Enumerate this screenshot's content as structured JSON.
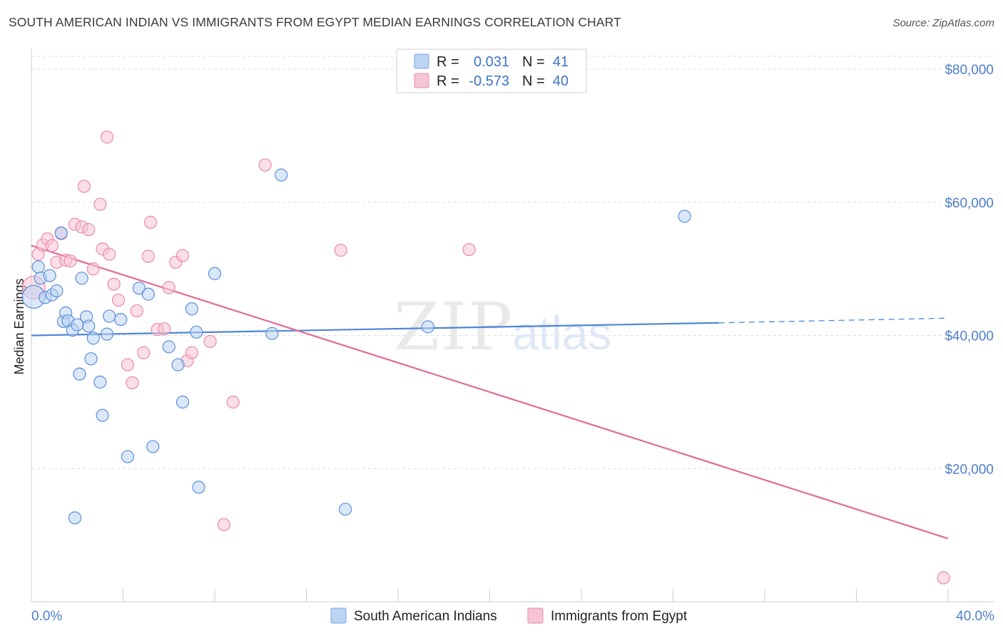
{
  "header": {
    "title": "SOUTH AMERICAN INDIAN VS IMMIGRANTS FROM EGYPT MEDIAN EARNINGS CORRELATION CHART",
    "source": "Source: ZipAtlas.com"
  },
  "watermark": {
    "zip": "ZIP",
    "atlas": "atlas"
  },
  "colors": {
    "blue": "#4f86d6",
    "blue_fill": "#bcd3f2",
    "pink": "#e06b96",
    "pink_fill": "#f6c4d5",
    "axis_label": "#4f7fc9",
    "grid": "#dddddd"
  },
  "legend": {
    "rows": [
      {
        "r_label": "R =",
        "r_value": "0.031",
        "n_label": "N =",
        "n_value": "41"
      },
      {
        "r_label": "R =",
        "r_value": "-0.573",
        "n_label": "N =",
        "n_value": "40"
      }
    ]
  },
  "chart_data": {
    "type": "scatter",
    "title": "SOUTH AMERICAN INDIAN VS IMMIGRANTS FROM EGYPT MEDIAN EARNINGS CORRELATION CHART",
    "xlabel": "",
    "ylabel": "Median Earnings",
    "xlim": [
      0,
      40
    ],
    "ylim": [
      0,
      82000
    ],
    "x_tick_labels": [
      "0.0%",
      "40.0%"
    ],
    "y_ticks": [
      {
        "value": 20000,
        "label": "$20,000"
      },
      {
        "value": 40000,
        "label": "$40,000"
      },
      {
        "value": 60000,
        "label": "$60,000"
      },
      {
        "value": 80000,
        "label": "$80,000"
      }
    ],
    "series": [
      {
        "name": "South American Indians",
        "color": "#4f86d6",
        "r": 0.031,
        "n": 41,
        "trend": {
          "x0": 0,
          "y0": 40000,
          "x1": 30,
          "y1": 41900,
          "dash_to_x": 40,
          "dash_to_y": 42600
        },
        "points": [
          {
            "x": 0.1,
            "y": 45800,
            "big": true
          },
          {
            "x": 0.3,
            "y": 50300
          },
          {
            "x": 0.4,
            "y": 48600
          },
          {
            "x": 0.6,
            "y": 45700
          },
          {
            "x": 0.8,
            "y": 49000
          },
          {
            "x": 0.9,
            "y": 46100
          },
          {
            "x": 1.1,
            "y": 46700
          },
          {
            "x": 1.3,
            "y": 55400
          },
          {
            "x": 1.4,
            "y": 42100
          },
          {
            "x": 1.5,
            "y": 43400
          },
          {
            "x": 1.6,
            "y": 42200
          },
          {
            "x": 1.8,
            "y": 40800
          },
          {
            "x": 2.1,
            "y": 34200
          },
          {
            "x": 2.2,
            "y": 48600
          },
          {
            "x": 2.4,
            "y": 42800
          },
          {
            "x": 2.5,
            "y": 41400
          },
          {
            "x": 2.6,
            "y": 36500
          },
          {
            "x": 2.7,
            "y": 39600
          },
          {
            "x": 3.0,
            "y": 33000
          },
          {
            "x": 3.1,
            "y": 28000
          },
          {
            "x": 3.3,
            "y": 40200
          },
          {
            "x": 3.4,
            "y": 42900
          },
          {
            "x": 3.9,
            "y": 42400
          },
          {
            "x": 4.2,
            "y": 21800
          },
          {
            "x": 4.7,
            "y": 47100
          },
          {
            "x": 5.1,
            "y": 46200
          },
          {
            "x": 5.3,
            "y": 23300
          },
          {
            "x": 6.0,
            "y": 38300
          },
          {
            "x": 6.4,
            "y": 35600
          },
          {
            "x": 6.6,
            "y": 30000
          },
          {
            "x": 7.0,
            "y": 44000
          },
          {
            "x": 7.2,
            "y": 40500
          },
          {
            "x": 7.3,
            "y": 17200
          },
          {
            "x": 8.0,
            "y": 49300
          },
          {
            "x": 10.5,
            "y": 40300
          },
          {
            "x": 10.9,
            "y": 64100
          },
          {
            "x": 13.7,
            "y": 13900
          },
          {
            "x": 17.3,
            "y": 41300
          },
          {
            "x": 28.5,
            "y": 57900
          },
          {
            "x": 1.9,
            "y": 12600
          },
          {
            "x": 2.0,
            "y": 41600
          }
        ]
      },
      {
        "name": "Immigrants from Egypt",
        "color": "#e06b96",
        "r": -0.573,
        "n": 40,
        "trend": {
          "x0": 0,
          "y0": 53500,
          "x1": 40,
          "y1": 9500
        },
        "points": [
          {
            "x": 0.1,
            "y": 47200,
            "big": true
          },
          {
            "x": 0.3,
            "y": 52200
          },
          {
            "x": 0.5,
            "y": 53600
          },
          {
            "x": 0.7,
            "y": 54500
          },
          {
            "x": 0.9,
            "y": 53500
          },
          {
            "x": 1.1,
            "y": 51000
          },
          {
            "x": 1.3,
            "y": 55300
          },
          {
            "x": 1.5,
            "y": 51300
          },
          {
            "x": 1.7,
            "y": 51200
          },
          {
            "x": 1.9,
            "y": 56700
          },
          {
            "x": 2.2,
            "y": 56300
          },
          {
            "x": 2.3,
            "y": 62400
          },
          {
            "x": 2.5,
            "y": 55900
          },
          {
            "x": 2.7,
            "y": 50000
          },
          {
            "x": 3.0,
            "y": 59700
          },
          {
            "x": 3.1,
            "y": 53000
          },
          {
            "x": 3.3,
            "y": 69800
          },
          {
            "x": 3.4,
            "y": 52200
          },
          {
            "x": 3.6,
            "y": 47700
          },
          {
            "x": 3.8,
            "y": 45300
          },
          {
            "x": 4.2,
            "y": 35600
          },
          {
            "x": 4.4,
            "y": 32900
          },
          {
            "x": 4.6,
            "y": 43700
          },
          {
            "x": 4.9,
            "y": 37400
          },
          {
            "x": 5.1,
            "y": 51900
          },
          {
            "x": 5.2,
            "y": 57000
          },
          {
            "x": 5.5,
            "y": 40900
          },
          {
            "x": 5.8,
            "y": 41000
          },
          {
            "x": 6.0,
            "y": 47200
          },
          {
            "x": 6.3,
            "y": 51000
          },
          {
            "x": 6.6,
            "y": 52000
          },
          {
            "x": 6.8,
            "y": 36200
          },
          {
            "x": 7.0,
            "y": 37400
          },
          {
            "x": 7.8,
            "y": 39100
          },
          {
            "x": 8.4,
            "y": 11600
          },
          {
            "x": 8.8,
            "y": 30000
          },
          {
            "x": 10.2,
            "y": 65600
          },
          {
            "x": 13.5,
            "y": 52800
          },
          {
            "x": 19.1,
            "y": 52900
          },
          {
            "x": 39.8,
            "y": 3600
          }
        ]
      }
    ]
  },
  "bottom_legend": {
    "items": [
      {
        "label": "South American Indians"
      },
      {
        "label": "Immigrants from Egypt"
      }
    ]
  }
}
